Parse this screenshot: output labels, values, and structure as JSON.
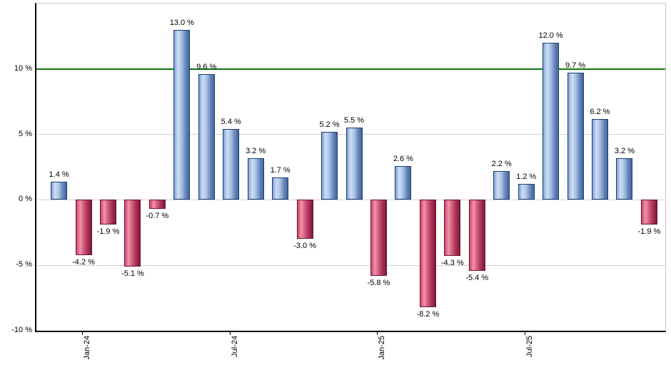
{
  "chart_data": {
    "type": "bar",
    "title": "",
    "unit": "%",
    "values": [
      1.4,
      -4.2,
      -1.9,
      -5.1,
      -0.7,
      13.0,
      9.6,
      5.4,
      3.2,
      1.7,
      -3.0,
      5.2,
      5.5,
      -5.8,
      2.6,
      -8.2,
      -4.3,
      -5.4,
      2.2,
      1.2,
      12.0,
      9.7,
      6.2,
      3.2,
      -1.9
    ],
    "bar_labels": [
      "1.4 %",
      "-4.2 %",
      "-1.9 %",
      "-5.1 %",
      "-0.7 %",
      "13.0 %",
      "9.6 %",
      "5.4 %",
      "3.2 %",
      "1.7 %",
      "-3.0 %",
      "5.2 %",
      "5.5 %",
      "-5.8 %",
      "2.6 %",
      "-8.2 %",
      "-4.3 %",
      "-5.4 %",
      "2.2 %",
      "1.2 %",
      "12.0 %",
      "9.7 %",
      "6.2 %",
      "3.2 %",
      "-1.9 %"
    ],
    "x_ticks": [
      {
        "bar_index": 1,
        "label": "Jan-24"
      },
      {
        "bar_index": 7,
        "label": "Jul-24"
      },
      {
        "bar_index": 13,
        "label": "Jan-25"
      },
      {
        "bar_index": 19,
        "label": "Jul-25"
      }
    ],
    "y_ticks": [
      {
        "value": 10,
        "label": "10 %"
      },
      {
        "value": 5,
        "label": "5 %"
      },
      {
        "value": 0,
        "label": "0 %"
      },
      {
        "value": -5,
        "label": "-5 %"
      },
      {
        "value": -10,
        "label": "-10 %"
      }
    ],
    "gridline_values": [
      5,
      0,
      -5
    ],
    "ylim": [
      -10,
      15
    ],
    "reference_line": {
      "value": 10,
      "color": "#0c7a0c"
    },
    "grid": true,
    "legend": "none",
    "colors": {
      "positive_border": "#1d3e6e",
      "positive_fill_light": "#cfdef6",
      "positive_fill_dark": "#44659a",
      "negative_border": "#6f1132",
      "negative_fill_light": "#f093a9",
      "negative_fill_dark": "#7b1c3c",
      "gridline": "#d2d2d2",
      "axis": "#000000",
      "plot_border": "#c6c6c6",
      "background": "#ffffff",
      "label_text": "#000000"
    }
  }
}
